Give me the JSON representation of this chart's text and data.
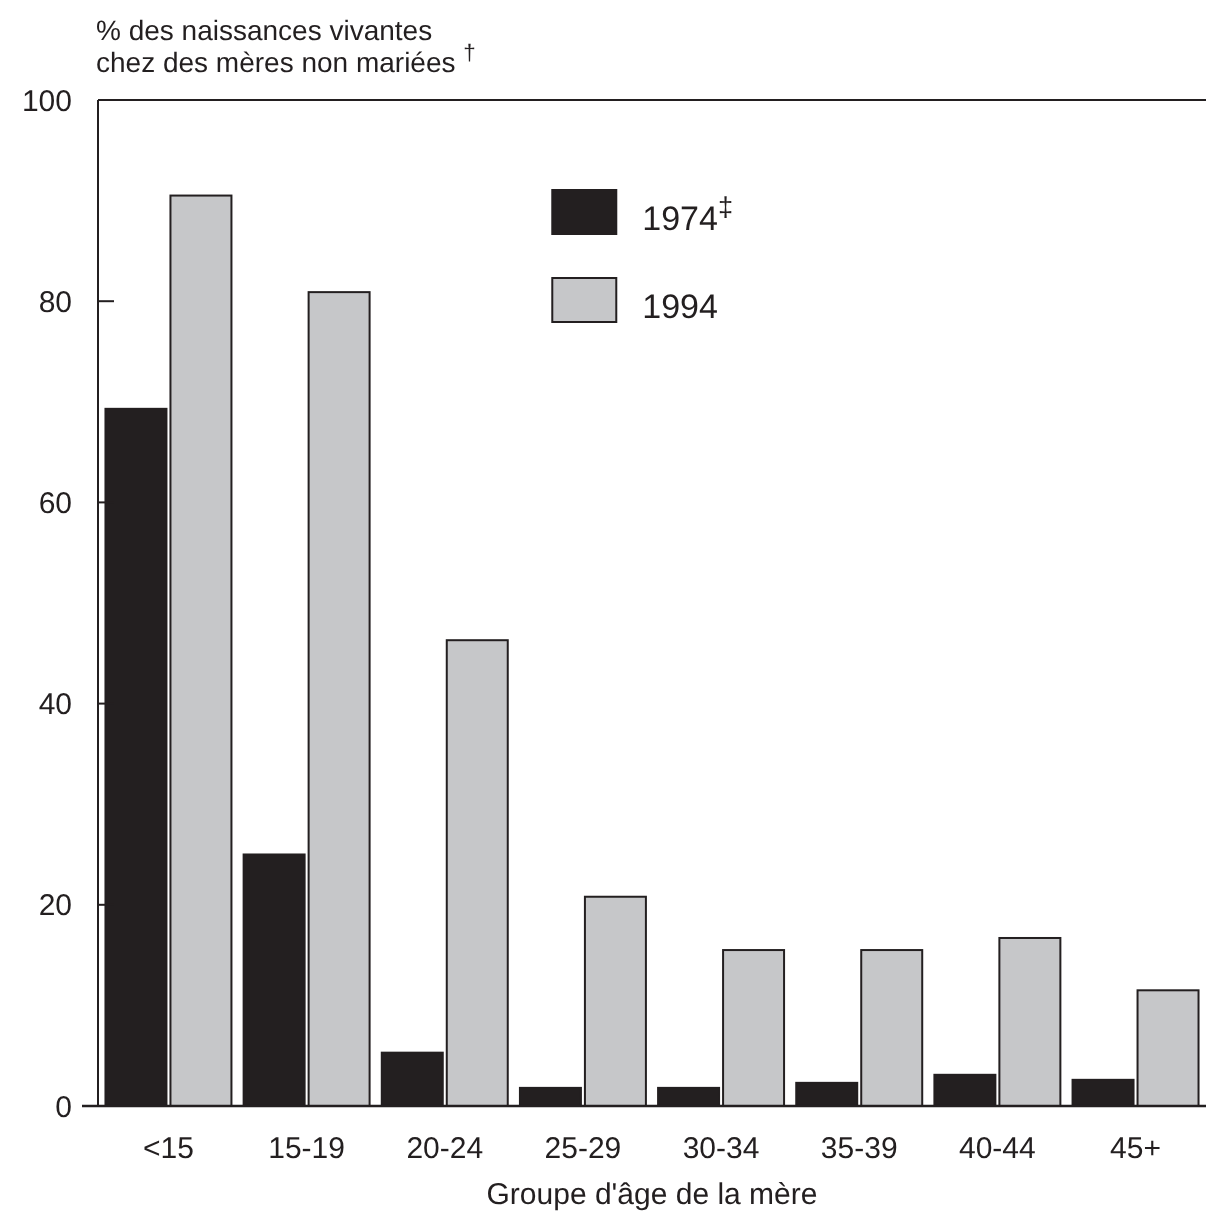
{
  "chart_data": {
    "type": "bar",
    "ylabel": "% des naissances vivantes\nchez des mères non mariées $^{†}$",
    "xlabel": "Groupe d'âge de la mère",
    "categories": [
      "<15",
      "15-19",
      "20-24",
      "25-29",
      "30-34",
      "35-39",
      "40-44",
      "45+"
    ],
    "series": [
      {
        "name": "1974$^{‡}$",
        "color": "#231f20",
        "values": [
          69.5,
          25.2,
          5.5,
          2,
          2,
          2.5,
          3.3,
          2.8
        ]
      },
      {
        "name": "1994",
        "color": "#c6c7c9",
        "values": [
          90.7,
          81.1,
          46.5,
          21,
          15.7,
          15.7,
          16.9,
          11.7
        ]
      }
    ],
    "ylim": [
      0,
      100
    ],
    "yticks": [
      0,
      20,
      40,
      60,
      80,
      100
    ],
    "legend": "top",
    "grid": false
  }
}
